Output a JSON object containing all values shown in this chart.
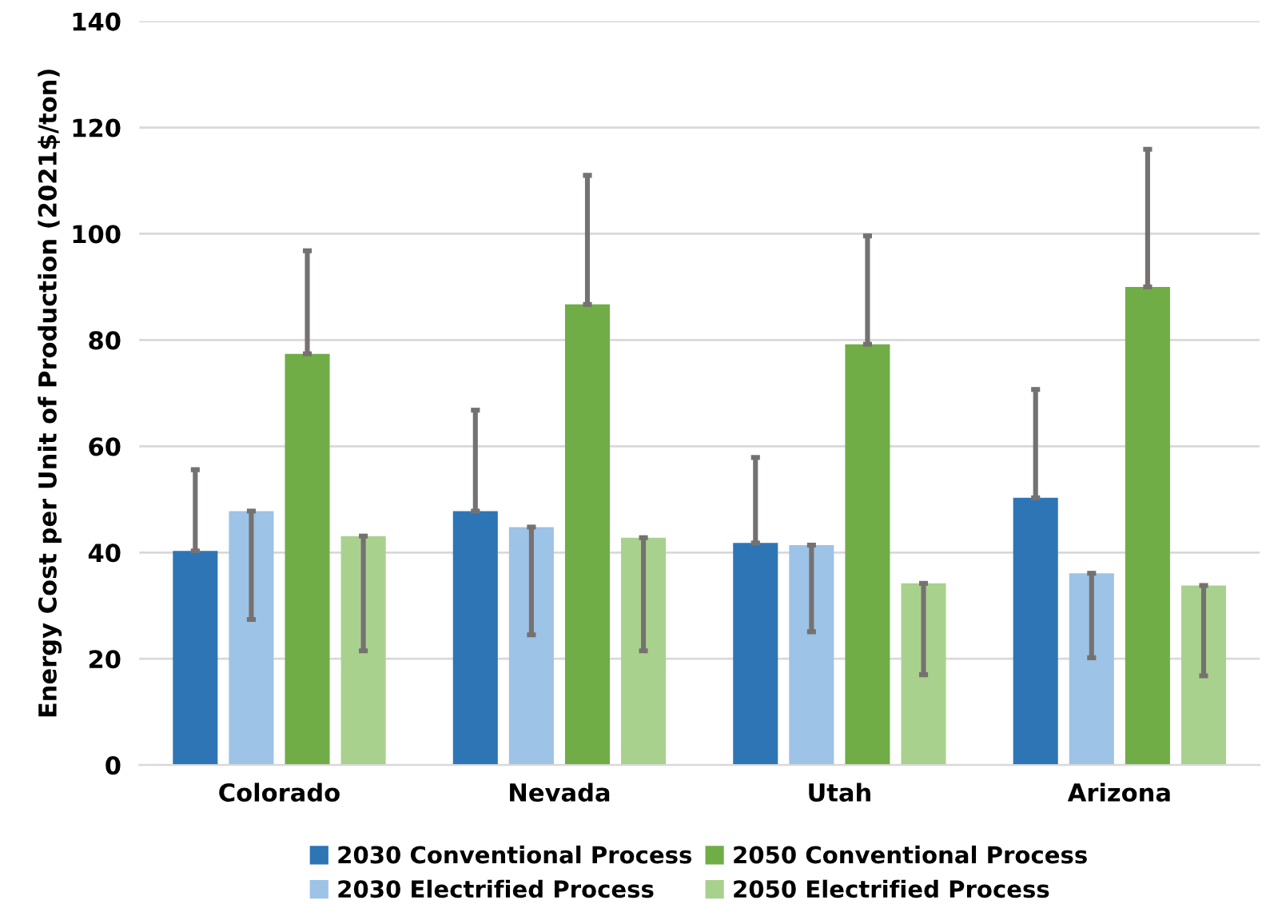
{
  "chart_data": {
    "type": "bar",
    "ylabel": "Energy Cost per Unit of Production (2021$/ton)",
    "categories": [
      "Colorado",
      "Nevada",
      "Utah",
      "Arizona"
    ],
    "series": [
      {
        "name": "2030 Conventional Process",
        "color": "#2e75b6",
        "values": [
          40.3,
          47.8,
          41.8,
          50.3
        ],
        "errors": [
          [
            40.3,
            55.6
          ],
          [
            47.8,
            66.8
          ],
          [
            41.8,
            57.9
          ],
          [
            50.3,
            70.7
          ]
        ]
      },
      {
        "name": "2030 Electrified Process",
        "color": "#9dc3e6",
        "values": [
          47.8,
          44.8,
          41.4,
          36.1
        ],
        "errors": [
          [
            27.4,
            47.8
          ],
          [
            24.5,
            44.8
          ],
          [
            25.1,
            41.4
          ],
          [
            20.2,
            36.1
          ]
        ]
      },
      {
        "name": "2050 Conventional Process",
        "color": "#70ad47",
        "values": [
          77.4,
          86.7,
          79.2,
          90.0
        ],
        "errors": [
          [
            77.4,
            96.8
          ],
          [
            86.7,
            111.0
          ],
          [
            79.2,
            99.6
          ],
          [
            90.0,
            115.9
          ]
        ]
      },
      {
        "name": "2050 Electrified Process",
        "color": "#a9d18e",
        "values": [
          43.1,
          42.8,
          34.2,
          33.8
        ],
        "errors": [
          [
            21.5,
            43.1
          ],
          [
            21.5,
            42.8
          ],
          [
            17.0,
            34.2
          ],
          [
            16.8,
            33.8
          ]
        ]
      }
    ],
    "ylim": [
      0,
      140
    ],
    "yticks": [
      0,
      20,
      40,
      60,
      80,
      100,
      120,
      140
    ],
    "grid": "y",
    "legend": "bottom"
  }
}
